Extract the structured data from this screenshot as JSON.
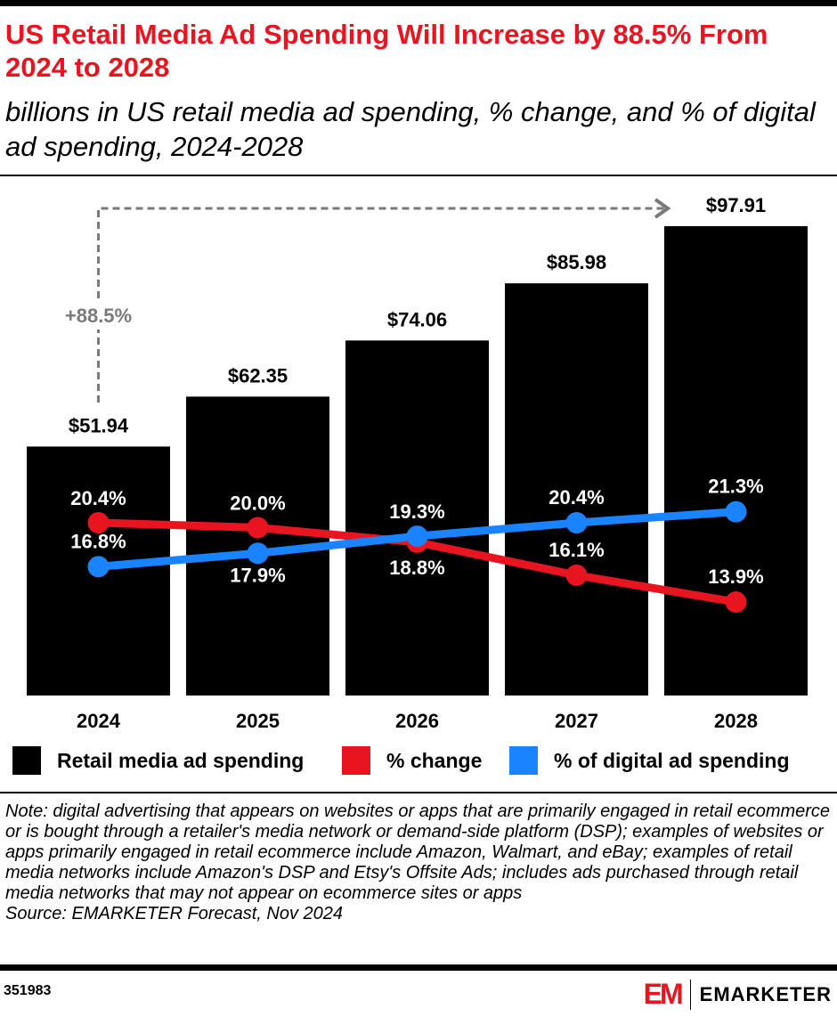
{
  "title": "US Retail Media Ad Spending Will Increase by 88.5% From 2024 to 2028",
  "subtitle": "billions in US retail media ad spending, % change, and % of digital ad spending, 2024-2028",
  "chart_data": {
    "type": "bar",
    "categories": [
      "2024",
      "2025",
      "2026",
      "2027",
      "2028"
    ],
    "series": [
      {
        "name": "Retail media ad spending",
        "type": "bar",
        "values": [
          51.94,
          62.35,
          74.06,
          85.98,
          97.91
        ],
        "labels": [
          "$51.94",
          "$62.35",
          "$74.06",
          "$85.98",
          "$97.91"
        ],
        "color": "#000000"
      },
      {
        "name": "% change",
        "type": "line",
        "values": [
          20.4,
          20.0,
          18.8,
          16.1,
          13.9
        ],
        "labels": [
          "20.4%",
          "20.0%",
          "18.8%",
          "16.1%",
          "13.9%"
        ],
        "color": "#e8141f"
      },
      {
        "name": "% of digital ad spending",
        "type": "line",
        "values": [
          16.8,
          17.9,
          19.3,
          20.4,
          21.3
        ],
        "labels": [
          "16.8%",
          "17.9%",
          "19.3%",
          "20.4%",
          "21.3%"
        ],
        "color": "#1a83ff"
      }
    ],
    "annotation": "+88.5%",
    "annotation_color": "#7a7a7a",
    "legend_position": "bottom",
    "grid": false
  },
  "note": "Note: digital advertising that appears on websites or apps that are primarily engaged in retail ecommerce or is bought through a retailer's media network or demand-side platform (DSP); examples of websites or apps primarily engaged in retail ecommerce include Amazon, Walmart, and eBay; examples of retail media networks include Amazon's DSP and Etsy's Offsite Ads; includes ads purchased through retail media networks that may not appear on ecommerce sites or apps",
  "source": "Source: EMARKETER Forecast, Nov 2024",
  "chart_id": "351983",
  "brand": {
    "mark": "EM",
    "name": "EMARKETER"
  }
}
